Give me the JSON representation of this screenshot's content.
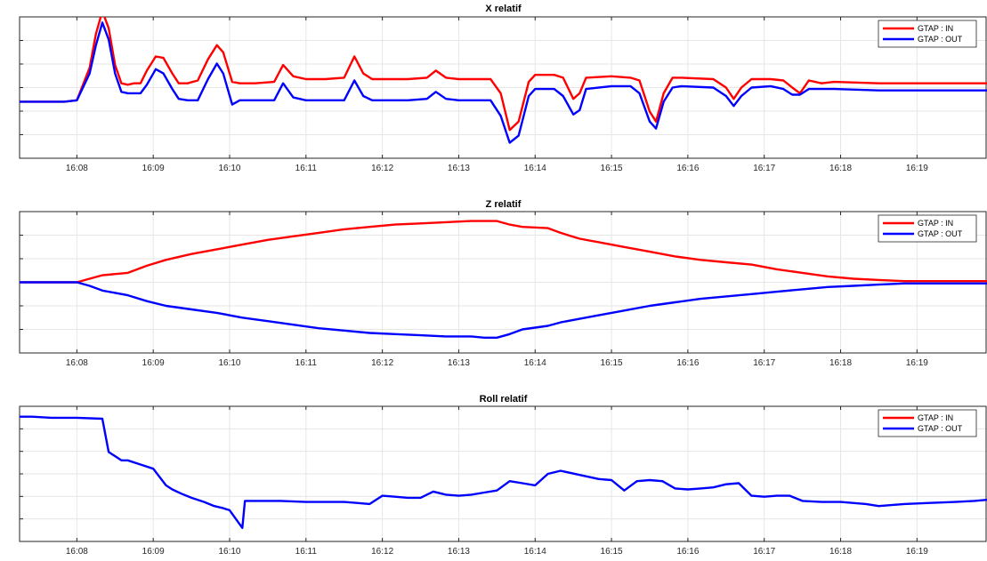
{
  "chart_data": [
    {
      "type": "line",
      "title": "X relatif",
      "xlabel": "",
      "ylabel": "",
      "x_ticks": [
        "16:08",
        "16:09",
        "16:10",
        "16:11",
        "16:12",
        "16:13",
        "16:14",
        "16:15",
        "16:16",
        "16:17",
        "16:18",
        "16:19"
      ],
      "xlim": [
        "16:07:15",
        "16:19:55"
      ],
      "ylim": [
        -2.0,
        3.0
      ],
      "y_ticks_shown": false,
      "grid": true,
      "legend_position": "top-right",
      "series": [
        {
          "name": "GTAP : IN",
          "color": "#ff0000",
          "x": [
            "16:07:15",
            "16:07:35",
            "16:07:50",
            "16:08:00",
            "16:08:10",
            "16:08:15",
            "16:08:20",
            "16:08:25",
            "16:08:30",
            "16:08:35",
            "16:08:40",
            "16:08:45",
            "16:08:50",
            "16:08:55",
            "16:09:02",
            "16:09:08",
            "16:09:15",
            "16:09:20",
            "16:09:27",
            "16:09:35",
            "16:09:43",
            "16:09:50",
            "16:09:55",
            "16:10:02",
            "16:10:08",
            "16:10:20",
            "16:10:35",
            "16:10:42",
            "16:10:50",
            "16:11:00",
            "16:11:15",
            "16:11:30",
            "16:11:38",
            "16:11:45",
            "16:11:52",
            "16:12:00",
            "16:12:20",
            "16:12:35",
            "16:12:42",
            "16:12:50",
            "16:13:00",
            "16:13:15",
            "16:13:25",
            "16:13:33",
            "16:13:40",
            "16:13:47",
            "16:13:55",
            "16:14:00",
            "16:14:15",
            "16:14:22",
            "16:14:30",
            "16:14:35",
            "16:14:40",
            "16:15:00",
            "16:15:15",
            "16:15:22",
            "16:15:30",
            "16:15:35",
            "16:15:41",
            "16:15:48",
            "16:15:55",
            "16:16:20",
            "16:16:30",
            "16:16:36",
            "16:16:42",
            "16:16:50",
            "16:17:05",
            "16:17:15",
            "16:17:22",
            "16:17:28",
            "16:17:35",
            "16:17:45",
            "16:17:55",
            "16:18:30",
            "16:19:00",
            "16:19:55"
          ],
          "y": [
            0.0,
            0.0,
            0.0,
            0.05,
            1.2,
            2.4,
            3.2,
            2.6,
            1.3,
            0.65,
            0.6,
            0.65,
            0.65,
            1.1,
            1.6,
            1.55,
            1.0,
            0.65,
            0.65,
            0.75,
            1.5,
            2.0,
            1.75,
            0.7,
            0.65,
            0.65,
            0.7,
            1.3,
            0.9,
            0.8,
            0.8,
            0.85,
            1.6,
            1.0,
            0.8,
            0.8,
            0.8,
            0.85,
            1.1,
            0.85,
            0.8,
            0.8,
            0.8,
            0.3,
            -1.0,
            -0.7,
            0.7,
            0.95,
            0.95,
            0.85,
            0.1,
            0.3,
            0.85,
            0.9,
            0.85,
            0.75,
            -0.35,
            -0.7,
            0.3,
            0.85,
            0.85,
            0.8,
            0.5,
            0.1,
            0.5,
            0.8,
            0.8,
            0.75,
            0.5,
            0.3,
            0.75,
            0.65,
            0.7,
            0.65,
            0.65,
            0.65
          ]
        },
        {
          "name": "GTAP : OUT",
          "color": "#0000ff",
          "x": [
            "16:07:15",
            "16:07:35",
            "16:07:50",
            "16:08:00",
            "16:08:10",
            "16:08:15",
            "16:08:20",
            "16:08:25",
            "16:08:30",
            "16:08:35",
            "16:08:40",
            "16:08:45",
            "16:08:50",
            "16:08:55",
            "16:09:02",
            "16:09:08",
            "16:09:15",
            "16:09:20",
            "16:09:27",
            "16:09:35",
            "16:09:43",
            "16:09:50",
            "16:09:55",
            "16:10:02",
            "16:10:08",
            "16:10:20",
            "16:10:35",
            "16:10:42",
            "16:10:50",
            "16:11:00",
            "16:11:15",
            "16:11:30",
            "16:11:38",
            "16:11:45",
            "16:11:52",
            "16:12:00",
            "16:12:20",
            "16:12:35",
            "16:12:42",
            "16:12:50",
            "16:13:00",
            "16:13:15",
            "16:13:25",
            "16:13:33",
            "16:13:40",
            "16:13:47",
            "16:13:55",
            "16:14:00",
            "16:14:15",
            "16:14:22",
            "16:14:30",
            "16:14:35",
            "16:14:40",
            "16:15:00",
            "16:15:15",
            "16:15:22",
            "16:15:30",
            "16:15:35",
            "16:15:41",
            "16:15:48",
            "16:15:55",
            "16:16:20",
            "16:16:30",
            "16:16:36",
            "16:16:42",
            "16:16:50",
            "16:17:05",
            "16:17:15",
            "16:17:22",
            "16:17:28",
            "16:17:35",
            "16:17:45",
            "16:17:55",
            "16:18:30",
            "16:19:00",
            "16:19:55"
          ],
          "y": [
            0.0,
            0.0,
            0.0,
            0.05,
            1.0,
            2.0,
            2.8,
            2.2,
            1.0,
            0.35,
            0.3,
            0.3,
            0.3,
            0.6,
            1.15,
            1.0,
            0.45,
            0.1,
            0.05,
            0.05,
            0.8,
            1.35,
            1.0,
            -0.1,
            0.05,
            0.05,
            0.05,
            0.65,
            0.15,
            0.05,
            0.05,
            0.05,
            0.75,
            0.2,
            0.05,
            0.05,
            0.05,
            0.1,
            0.35,
            0.1,
            0.05,
            0.05,
            0.05,
            -0.5,
            -1.45,
            -1.2,
            0.2,
            0.45,
            0.45,
            0.2,
            -0.45,
            -0.3,
            0.45,
            0.55,
            0.55,
            0.3,
            -0.7,
            -0.95,
            0.0,
            0.5,
            0.55,
            0.5,
            0.2,
            -0.15,
            0.2,
            0.5,
            0.55,
            0.45,
            0.25,
            0.25,
            0.45,
            0.45,
            0.45,
            0.4,
            0.4,
            0.4
          ]
        }
      ]
    },
    {
      "type": "line",
      "title": "Z relatif",
      "xlabel": "",
      "ylabel": "",
      "x_ticks": [
        "16:08",
        "16:09",
        "16:10",
        "16:11",
        "16:12",
        "16:13",
        "16:14",
        "16:15",
        "16:16",
        "16:17",
        "16:18",
        "16:19"
      ],
      "xlim": [
        "16:07:15",
        "16:19:55"
      ],
      "ylim": [
        -3.0,
        3.0
      ],
      "y_ticks_shown": false,
      "grid": true,
      "legend_position": "top-right",
      "series": [
        {
          "name": "GTAP : IN",
          "color": "#ff0000",
          "x": [
            "16:07:15",
            "16:08:00",
            "16:08:10",
            "16:08:20",
            "16:08:40",
            "16:08:55",
            "16:09:10",
            "16:09:30",
            "16:09:50",
            "16:10:10",
            "16:10:30",
            "16:10:50",
            "16:11:10",
            "16:11:30",
            "16:11:50",
            "16:12:10",
            "16:12:30",
            "16:12:50",
            "16:13:10",
            "16:13:20",
            "16:13:30",
            "16:13:40",
            "16:13:50",
            "16:14:10",
            "16:14:20",
            "16:14:35",
            "16:14:50",
            "16:15:10",
            "16:15:30",
            "16:15:50",
            "16:16:10",
            "16:16:30",
            "16:16:50",
            "16:17:10",
            "16:17:30",
            "16:17:50",
            "16:18:10",
            "16:18:30",
            "16:18:50",
            "16:19:10",
            "16:19:30",
            "16:19:55"
          ],
          "y": [
            0.0,
            0.0,
            0.15,
            0.3,
            0.4,
            0.7,
            0.95,
            1.2,
            1.4,
            1.6,
            1.8,
            1.95,
            2.1,
            2.25,
            2.35,
            2.45,
            2.5,
            2.55,
            2.6,
            2.6,
            2.6,
            2.45,
            2.35,
            2.3,
            2.1,
            1.85,
            1.7,
            1.5,
            1.3,
            1.1,
            0.95,
            0.85,
            0.75,
            0.55,
            0.4,
            0.25,
            0.15,
            0.1,
            0.05,
            0.05,
            0.05,
            0.05
          ]
        },
        {
          "name": "GTAP : OUT",
          "color": "#0000ff",
          "x": [
            "16:07:15",
            "16:08:00",
            "16:08:10",
            "16:08:20",
            "16:08:40",
            "16:08:55",
            "16:09:10",
            "16:09:30",
            "16:09:50",
            "16:10:10",
            "16:10:30",
            "16:10:50",
            "16:11:10",
            "16:11:30",
            "16:11:50",
            "16:12:10",
            "16:12:30",
            "16:12:50",
            "16:13:10",
            "16:13:20",
            "16:13:30",
            "16:13:40",
            "16:13:50",
            "16:14:10",
            "16:14:20",
            "16:14:35",
            "16:14:50",
            "16:15:10",
            "16:15:30",
            "16:15:50",
            "16:16:10",
            "16:16:30",
            "16:16:50",
            "16:17:10",
            "16:17:30",
            "16:17:50",
            "16:18:10",
            "16:18:30",
            "16:18:50",
            "16:19:10",
            "16:19:30",
            "16:19:55"
          ],
          "y": [
            0.0,
            0.0,
            -0.15,
            -0.35,
            -0.55,
            -0.8,
            -1.0,
            -1.15,
            -1.3,
            -1.5,
            -1.65,
            -1.8,
            -1.95,
            -2.05,
            -2.15,
            -2.2,
            -2.25,
            -2.3,
            -2.3,
            -2.35,
            -2.35,
            -2.2,
            -2.0,
            -1.85,
            -1.7,
            -1.55,
            -1.4,
            -1.2,
            -1.0,
            -0.85,
            -0.7,
            -0.6,
            -0.5,
            -0.4,
            -0.3,
            -0.2,
            -0.15,
            -0.1,
            -0.05,
            -0.05,
            -0.05,
            -0.05
          ]
        }
      ]
    },
    {
      "type": "line",
      "title": "Roll relatif",
      "xlabel": "",
      "ylabel": "",
      "x_ticks": [
        "16:08",
        "16:09",
        "16:10",
        "16:11",
        "16:12",
        "16:13",
        "16:14",
        "16:15",
        "16:16",
        "16:17",
        "16:18",
        "16:19"
      ],
      "xlim": [
        "16:07:15",
        "16:19:55"
      ],
      "ylim": [
        -6.0,
        0.5
      ],
      "y_ticks_shown": false,
      "grid": true,
      "legend_position": "top-right",
      "series": [
        {
          "name": "GTAP : IN",
          "color": "#ff0000",
          "x": [],
          "y": []
        },
        {
          "name": "GTAP : OUT",
          "color": "#0000ff",
          "x": [
            "16:07:15",
            "16:07:25",
            "16:07:40",
            "16:08:00",
            "16:08:20",
            "16:08:25",
            "16:08:35",
            "16:08:40",
            "16:08:50",
            "16:09:00",
            "16:09:10",
            "16:09:15",
            "16:09:22",
            "16:09:30",
            "16:09:40",
            "16:09:48",
            "16:09:55",
            "16:10:00",
            "16:10:10",
            "16:10:12",
            "16:10:20",
            "16:10:40",
            "16:11:00",
            "16:11:30",
            "16:11:40",
            "16:11:50",
            "16:12:00",
            "16:12:10",
            "16:12:20",
            "16:12:30",
            "16:12:40",
            "16:12:50",
            "16:13:00",
            "16:13:10",
            "16:13:20",
            "16:13:30",
            "16:13:40",
            "16:13:50",
            "16:14:00",
            "16:14:10",
            "16:14:20",
            "16:14:35",
            "16:14:50",
            "16:15:00",
            "16:15:10",
            "16:15:20",
            "16:15:30",
            "16:15:40",
            "16:15:50",
            "16:16:00",
            "16:16:10",
            "16:16:20",
            "16:16:30",
            "16:16:40",
            "16:16:50",
            "16:17:00",
            "16:17:10",
            "16:17:20",
            "16:17:30",
            "16:17:45",
            "16:18:00",
            "16:18:20",
            "16:18:30",
            "16:18:50",
            "16:19:10",
            "16:19:30",
            "16:19:45",
            "16:19:55"
          ],
          "y": [
            0.0,
            0.0,
            -0.05,
            -0.05,
            -0.1,
            -1.7,
            -2.1,
            -2.1,
            -2.3,
            -2.5,
            -3.3,
            -3.5,
            -3.7,
            -3.9,
            -4.1,
            -4.3,
            -4.4,
            -4.5,
            -5.35,
            -4.05,
            -4.05,
            -4.05,
            -4.1,
            -4.1,
            -4.15,
            -4.2,
            -3.8,
            -3.85,
            -3.9,
            -3.9,
            -3.6,
            -3.75,
            -3.8,
            -3.75,
            -3.65,
            -3.55,
            -3.1,
            -3.2,
            -3.3,
            -2.75,
            -2.6,
            -2.8,
            -3.0,
            -3.05,
            -3.55,
            -3.1,
            -3.05,
            -3.1,
            -3.45,
            -3.5,
            -3.45,
            -3.4,
            -3.25,
            -3.2,
            -3.8,
            -3.85,
            -3.8,
            -3.8,
            -4.05,
            -4.1,
            -4.1,
            -4.2,
            -4.3,
            -4.2,
            -4.15,
            -4.1,
            -4.05,
            -4.0
          ]
        }
      ]
    }
  ]
}
